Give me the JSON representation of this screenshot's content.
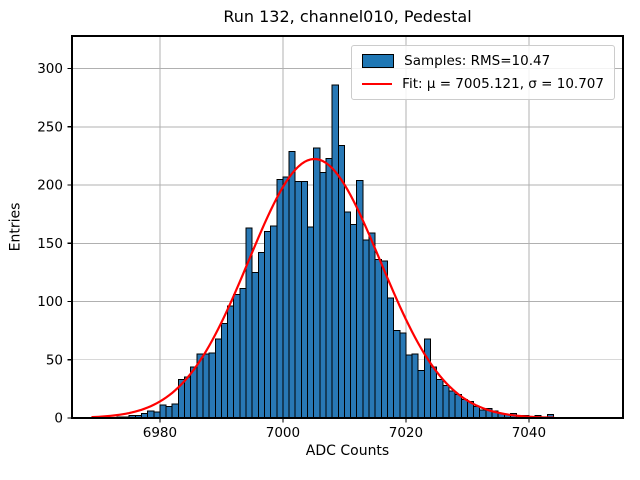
{
  "title": "Run 132, channel010, Pedestal",
  "chart_data": {
    "type": "bar",
    "subtype": "histogram-with-gaussian-fit",
    "title": "Run 132, channel010, Pedestal",
    "xlabel": "ADC Counts",
    "ylabel": "Entries",
    "xlim": [
      6965.7,
      7055.3
    ],
    "ylim": [
      0,
      328
    ],
    "xticks": [
      6980,
      7000,
      7020,
      7040
    ],
    "yticks": [
      0,
      50,
      100,
      150,
      200,
      250,
      300
    ],
    "grid": true,
    "bin_start": 6969,
    "bin_width": 1,
    "counts": [
      1,
      0,
      0,
      0,
      1,
      1,
      2,
      2,
      4,
      6,
      5,
      11,
      10,
      12,
      33,
      35,
      44,
      55,
      55,
      56,
      68,
      81,
      96,
      106,
      111,
      163,
      125,
      142,
      160,
      165,
      205,
      207,
      229,
      203,
      203,
      164,
      232,
      211,
      223,
      286,
      234,
      177,
      166,
      204,
      153,
      159,
      136,
      135,
      103,
      75,
      73,
      54,
      55,
      41,
      68,
      44,
      33,
      28,
      23,
      20,
      16,
      14,
      10,
      7,
      8,
      6,
      4,
      3,
      4,
      2,
      2,
      1,
      2,
      0,
      3
    ],
    "fit": {
      "type": "gaussian",
      "mu": 7005.121,
      "sigma": 10.707,
      "amplitude": 222.4,
      "x_start": 6969,
      "x_end": 7044
    },
    "legend": {
      "position": "upper right",
      "entries": [
        {
          "label": "Samples: RMS=10.47",
          "marker": "patch",
          "color": "#1f77b4"
        },
        {
          "label": "Fit: μ = 7005.121, σ = 10.707",
          "marker": "line",
          "color": "#ff0000"
        }
      ]
    },
    "colors": {
      "bar_fill": "#2878b5",
      "bar_edge": "#000000",
      "fit_line": "#ff0000",
      "grid": "#b0b0b0",
      "spine": "#000000",
      "background": "#ffffff"
    }
  }
}
